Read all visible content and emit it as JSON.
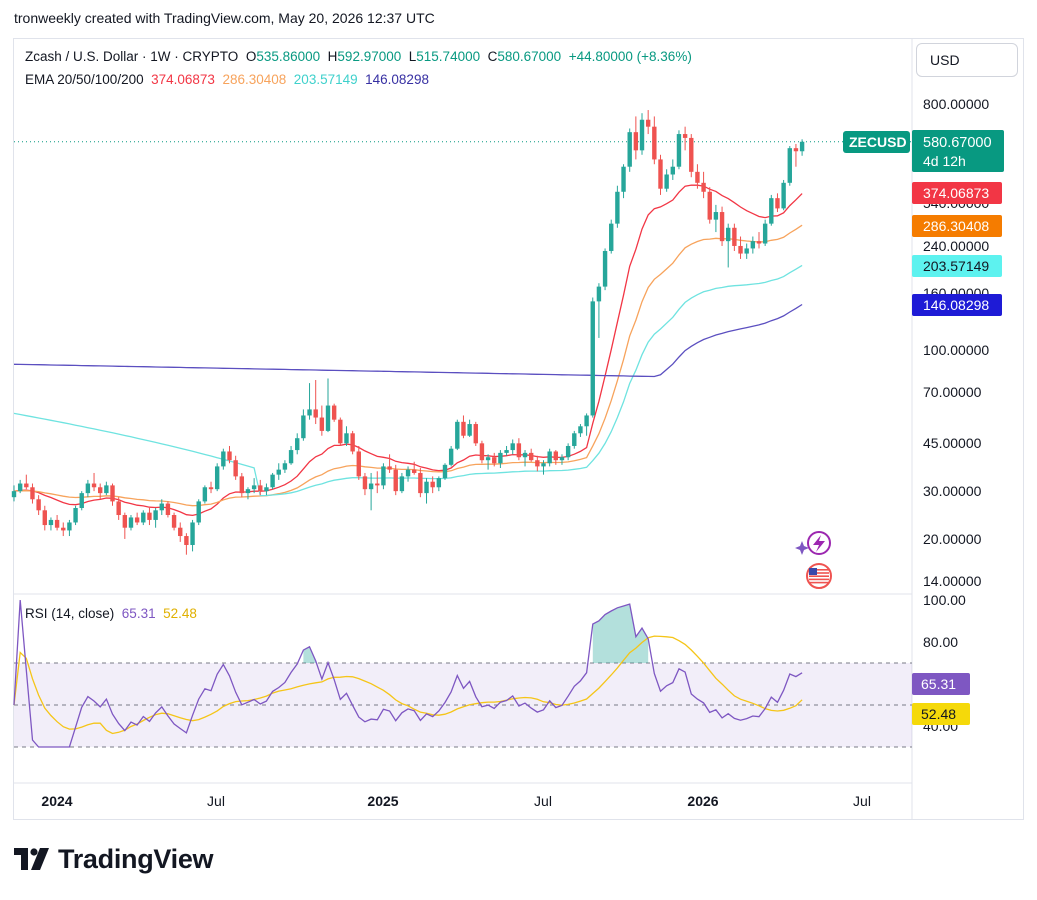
{
  "header": {
    "attribution": "tronweekly created with TradingView.com, May 20, 2026 12:37 UTC"
  },
  "currency_button": "USD",
  "legend": {
    "instrument": "Zcash / U.S. Dollar · 1W · CRYPTO",
    "open_label": "O",
    "open": "535.86000",
    "high_label": "H",
    "high": "592.97000",
    "low_label": "L",
    "low": "515.74000",
    "close_label": "C",
    "close": "580.67000",
    "change": "+44.80000 (+8.36%)",
    "ema_title": "EMA 20/50/100/200",
    "ema20": "374.06873",
    "ema50": "286.30408",
    "ema100": "203.57149",
    "ema200": "146.08298"
  },
  "price_axis": {
    "ticks": [
      "800.00000",
      "540.00000",
      "240.00000",
      "160.00000",
      "100.00000",
      "70.00000",
      "45.00000",
      "30.00000",
      "20.00000",
      "14.00000"
    ],
    "symbol_tag": "ZECUSD",
    "current_price": "580.67000",
    "countdown": "4d 12h"
  },
  "rsi": {
    "title": "RSI (14, close)",
    "rsi_value": "65.31",
    "ma_value": "52.48",
    "ticks": [
      "100.00",
      "80.00",
      "40.00"
    ]
  },
  "time_axis": [
    "2024",
    "Jul",
    "2025",
    "Jul",
    "2026",
    "Jul"
  ],
  "footer": {
    "brand": "TradingView"
  },
  "colors": {
    "up": "#26a69a",
    "down": "#ef5350",
    "ema20": "#f23645",
    "ema50": "#f7a35c",
    "ema100": "#6fe3e0",
    "ema200": "#5b4fc0",
    "rsi": "#7e57c2",
    "rsi_ma": "#f5c518",
    "current": "#089981"
  },
  "chart_data": {
    "type": "candlestick",
    "title": "Zcash / U.S. Dollar · 1W · CRYPTO",
    "scale": "log",
    "ylim": [
      14,
      900
    ],
    "x_range": [
      "2023-11",
      "2026-07"
    ],
    "series": [
      {
        "name": "ZECUSD",
        "type": "candlestick",
        "last_close": 580.67,
        "ohlc_approx": [
          [
            28.5,
            31.5,
            27.5,
            30.0
          ],
          [
            30.0,
            33.0,
            29.5,
            32.0
          ],
          [
            32.0,
            34.5,
            30.5,
            31.0
          ],
          [
            31.0,
            32.0,
            27.0,
            28.0
          ],
          [
            28.0,
            29.0,
            24.5,
            25.5
          ],
          [
            25.5,
            26.5,
            21.5,
            22.5
          ],
          [
            22.5,
            24.0,
            21.5,
            23.5
          ],
          [
            23.5,
            24.5,
            21.5,
            22.0
          ],
          [
            22.0,
            23.0,
            20.5,
            21.5
          ],
          [
            21.5,
            23.5,
            20.5,
            23.0
          ],
          [
            23.0,
            26.5,
            22.5,
            26.0
          ],
          [
            26.0,
            30.0,
            25.5,
            29.5
          ],
          [
            29.5,
            33.0,
            28.5,
            32.0
          ],
          [
            32.0,
            35.0,
            30.0,
            31.0
          ],
          [
            31.0,
            32.0,
            28.0,
            29.5
          ],
          [
            29.5,
            32.5,
            29.0,
            31.5
          ],
          [
            31.5,
            32.0,
            26.5,
            27.5
          ],
          [
            27.5,
            28.5,
            23.5,
            24.5
          ],
          [
            24.5,
            25.0,
            20.0,
            22.0
          ],
          [
            22.0,
            24.5,
            21.5,
            24.0
          ],
          [
            24.0,
            25.0,
            22.5,
            23.0
          ],
          [
            23.0,
            25.5,
            22.5,
            25.0
          ],
          [
            25.0,
            26.0,
            22.5,
            23.5
          ],
          [
            23.5,
            26.0,
            22.0,
            25.5
          ],
          [
            25.5,
            28.0,
            24.5,
            27.0
          ],
          [
            27.0,
            27.5,
            24.0,
            24.5
          ],
          [
            24.5,
            25.0,
            21.5,
            22.0
          ],
          [
            22.0,
            23.0,
            19.5,
            20.5
          ],
          [
            20.5,
            21.0,
            17.5,
            19.0
          ],
          [
            19.0,
            23.5,
            18.0,
            23.0
          ],
          [
            23.0,
            28.0,
            22.5,
            27.5
          ],
          [
            27.5,
            31.5,
            27.0,
            31.0
          ],
          [
            31.0,
            32.5,
            29.5,
            30.5
          ],
          [
            30.5,
            38.0,
            30.0,
            37.0
          ],
          [
            37.0,
            43.0,
            36.0,
            42.0
          ],
          [
            42.0,
            44.0,
            38.0,
            39.0
          ],
          [
            39.0,
            40.5,
            33.0,
            34.0
          ],
          [
            34.0,
            35.0,
            28.5,
            29.5
          ],
          [
            29.5,
            31.0,
            28.0,
            30.5
          ],
          [
            30.5,
            33.5,
            29.5,
            31.5
          ],
          [
            31.5,
            33.0,
            29.0,
            30.0
          ],
          [
            30.0,
            32.0,
            29.0,
            31.0
          ],
          [
            31.0,
            35.0,
            30.5,
            34.5
          ],
          [
            34.5,
            38.0,
            33.0,
            36.0
          ],
          [
            36.0,
            39.0,
            35.0,
            38.0
          ],
          [
            38.0,
            44.0,
            37.5,
            42.5
          ],
          [
            42.5,
            49.0,
            41.0,
            47.0
          ],
          [
            47.0,
            60.0,
            46.0,
            57.0
          ],
          [
            57.0,
            75.0,
            55.0,
            60.0
          ],
          [
            60.0,
            77.0,
            53.0,
            56.0
          ],
          [
            56.0,
            62.0,
            48.0,
            50.0
          ],
          [
            50.0,
            78.0,
            49.5,
            62.0
          ],
          [
            62.0,
            63.0,
            54.0,
            55.0
          ],
          [
            55.0,
            56.0,
            44.0,
            45.0
          ],
          [
            45.0,
            52.0,
            44.0,
            49.0
          ],
          [
            49.0,
            50.0,
            41.0,
            42.0
          ],
          [
            42.0,
            44.0,
            33.0,
            34.0
          ],
          [
            34.0,
            35.0,
            29.0,
            30.5
          ],
          [
            30.5,
            35.0,
            25.5,
            32.0
          ],
          [
            32.0,
            35.5,
            29.5,
            31.5
          ],
          [
            31.5,
            38.0,
            30.5,
            37.0
          ],
          [
            37.0,
            41.0,
            35.0,
            36.0
          ],
          [
            36.0,
            37.5,
            29.0,
            30.0
          ],
          [
            30.0,
            35.0,
            29.5,
            34.0
          ],
          [
            34.0,
            37.0,
            32.5,
            36.0
          ],
          [
            36.0,
            38.5,
            34.5,
            35.0
          ],
          [
            35.0,
            36.5,
            28.5,
            29.5
          ],
          [
            29.5,
            33.5,
            27.0,
            32.5
          ],
          [
            32.5,
            34.0,
            29.5,
            31.0
          ],
          [
            31.0,
            34.0,
            30.0,
            33.5
          ],
          [
            33.5,
            38.0,
            33.0,
            37.5
          ],
          [
            37.5,
            44.0,
            37.0,
            43.0
          ],
          [
            43.0,
            55.0,
            42.5,
            54.0
          ],
          [
            54.0,
            57.0,
            47.0,
            48.0
          ],
          [
            48.0,
            55.0,
            47.5,
            53.0
          ],
          [
            53.0,
            54.0,
            44.0,
            45.0
          ],
          [
            45.0,
            46.0,
            38.0,
            39.0
          ],
          [
            39.0,
            41.0,
            36.0,
            40.0
          ],
          [
            40.0,
            41.5,
            37.0,
            38.0
          ],
          [
            38.0,
            42.5,
            36.5,
            41.5
          ],
          [
            41.5,
            44.0,
            40.5,
            42.5
          ],
          [
            42.5,
            46.5,
            41.0,
            45.0
          ],
          [
            45.0,
            47.0,
            39.0,
            40.0
          ],
          [
            40.0,
            42.5,
            37.0,
            41.5
          ],
          [
            41.5,
            43.0,
            38.5,
            39.0
          ],
          [
            39.0,
            40.5,
            35.5,
            37.0
          ],
          [
            37.0,
            39.0,
            34.5,
            38.0
          ],
          [
            38.0,
            43.0,
            37.0,
            42.0
          ],
          [
            42.0,
            42.5,
            37.5,
            39.0
          ],
          [
            39.0,
            41.0,
            37.5,
            40.0
          ],
          [
            40.0,
            45.0,
            39.0,
            44.0
          ],
          [
            44.0,
            50.0,
            43.0,
            49.0
          ],
          [
            49.0,
            53.0,
            47.5,
            52.0
          ],
          [
            52.0,
            58.0,
            48.0,
            57.0
          ],
          [
            57.0,
            155.0,
            56.0,
            150.0
          ],
          [
            150.0,
            175.0,
            110.0,
            170.0
          ],
          [
            170.0,
            235.0,
            165.0,
            230.0
          ],
          [
            230.0,
            300.0,
            225.0,
            290.0
          ],
          [
            290.0,
            400.0,
            280.0,
            380.0
          ],
          [
            380.0,
            480.0,
            360.0,
            470.0
          ],
          [
            470.0,
            650.0,
            450.0,
            630.0
          ],
          [
            630.0,
            720.0,
            500.0,
            540.0
          ],
          [
            540.0,
            740.0,
            520.0,
            700.0
          ],
          [
            700.0,
            760.0,
            620.0,
            660.0
          ],
          [
            660.0,
            720.0,
            480.0,
            500.0
          ],
          [
            500.0,
            520.0,
            370.0,
            390.0
          ],
          [
            390.0,
            460.0,
            380.0,
            440.0
          ],
          [
            440.0,
            500.0,
            420.0,
            470.0
          ],
          [
            470.0,
            640.0,
            460.0,
            620.0
          ],
          [
            620.0,
            660.0,
            540.0,
            600.0
          ],
          [
            600.0,
            620.0,
            430.0,
            450.0
          ],
          [
            450.0,
            480.0,
            390.0,
            410.0
          ],
          [
            410.0,
            450.0,
            360.0,
            380.0
          ],
          [
            380.0,
            395.0,
            290.0,
            300.0
          ],
          [
            300.0,
            340.0,
            270.0,
            320.0
          ],
          [
            320.0,
            335.0,
            240.0,
            250.0
          ],
          [
            250.0,
            290.0,
            200.0,
            280.0
          ],
          [
            280.0,
            290.0,
            230.0,
            240.0
          ],
          [
            240.0,
            260.0,
            215.0,
            225.0
          ],
          [
            225.0,
            245.0,
            215.0,
            235.0
          ],
          [
            235.0,
            260.0,
            225.0,
            250.0
          ],
          [
            250.0,
            270.0,
            235.0,
            245.0
          ],
          [
            245.0,
            300.0,
            240.0,
            290.0
          ],
          [
            290.0,
            370.0,
            285.0,
            360.0
          ],
          [
            360.0,
            375.0,
            320.0,
            330.0
          ],
          [
            330.0,
            420.0,
            325.0,
            410.0
          ],
          [
            410.0,
            560.0,
            400.0,
            550.0
          ],
          [
            550.0,
            570.0,
            470.0,
            535.86
          ],
          [
            535.86,
            592.97,
            515.74,
            580.67
          ]
        ]
      },
      {
        "name": "EMA 20",
        "last": 374.06873
      },
      {
        "name": "EMA 50",
        "last": 286.30408
      },
      {
        "name": "EMA 100",
        "last": 203.57149
      },
      {
        "name": "EMA 200",
        "last": 146.08298
      },
      {
        "name": "RSI (14, close)",
        "last": 65.31
      },
      {
        "name": "RSI MA",
        "last": 52.48
      }
    ],
    "rsi_ylim": [
      30,
      100
    ],
    "rsi_bands": [
      70,
      50,
      30
    ]
  }
}
